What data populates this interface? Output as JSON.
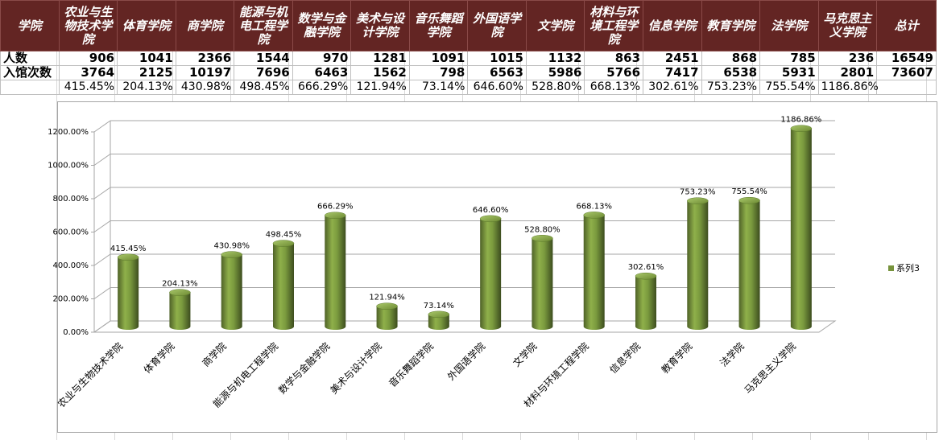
{
  "table": {
    "header_label": "学院",
    "colleges": [
      "农业与生物技术学院",
      "体育学院",
      "商学院",
      "能源与机电工程学院",
      "数学与金融学院",
      "美术与设计学院",
      "音乐舞蹈学院",
      "外国语学院",
      "文学院",
      "材料与环境工程学院",
      "信息学院",
      "教育学院",
      "法学院",
      "马克思主义学院"
    ],
    "total_label": "总计",
    "row_people_label": "人数",
    "row_visits_label": "入馆次数",
    "people": [
      "906",
      "1041",
      "2366",
      "1544",
      "970",
      "1281",
      "1091",
      "1015",
      "1132",
      "863",
      "2451",
      "868",
      "785",
      "236",
      "16549"
    ],
    "visits": [
      "3764",
      "2125",
      "10197",
      "7696",
      "6463",
      "1562",
      "798",
      "6563",
      "5986",
      "5766",
      "7417",
      "6538",
      "5931",
      "2801",
      "73607"
    ],
    "ratio": [
      "415.45%",
      "204.13%",
      "430.98%",
      "498.45%",
      "666.29%",
      "121.94%",
      "73.14%",
      "646.60%",
      "528.80%",
      "668.13%",
      "302.61%",
      "753.23%",
      "755.54%",
      "1186.86%",
      ""
    ]
  },
  "chart_data": {
    "type": "bar",
    "categories": [
      "农业与生物技术学院",
      "体育学院",
      "商学院",
      "能源与机电工程学院",
      "数学与金融学院",
      "美术与设计学院",
      "音乐舞蹈学院",
      "外国语学院",
      "文学院",
      "材料与环境工程学院",
      "信息学院",
      "教育学院",
      "法学院",
      "马克思主义学院"
    ],
    "series": [
      {
        "name": "系列3",
        "values": [
          415.45,
          204.13,
          430.98,
          498.45,
          666.29,
          121.94,
          73.14,
          646.6,
          528.8,
          668.13,
          302.61,
          753.23,
          755.54,
          1186.86
        ],
        "color": "#77933c"
      }
    ],
    "data_labels": [
      "415.45%",
      "204.13%",
      "430.98%",
      "498.45%",
      "666.29%",
      "121.94%",
      "73.14%",
      "646.60%",
      "528.80%",
      "668.13%",
      "302.61%",
      "753.23%",
      "755.54%",
      "1186.86%"
    ],
    "ylim": [
      0,
      1200
    ],
    "yticks": [
      "0.00%",
      "200.00%",
      "400.00%",
      "600.00%",
      "800.00%",
      "1000.00%",
      "1200.00%"
    ],
    "grid": true,
    "legend_position": "right",
    "style": "3d-cylinder"
  }
}
